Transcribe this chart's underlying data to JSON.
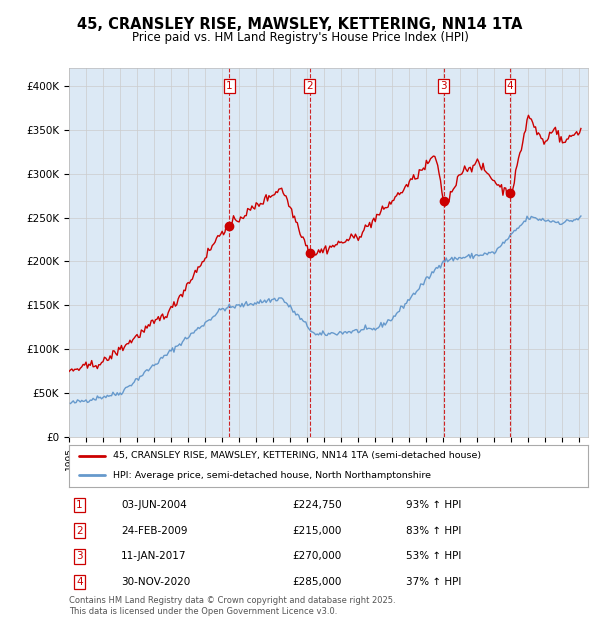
{
  "title": "45, CRANSLEY RISE, MAWSLEY, KETTERING, NN14 1TA",
  "subtitle": "Price paid vs. HM Land Registry's House Price Index (HPI)",
  "legend_line1": "45, CRANSLEY RISE, MAWSLEY, KETTERING, NN14 1TA (semi-detached house)",
  "legend_line2": "HPI: Average price, semi-detached house, North Northamptonshire",
  "footer": "Contains HM Land Registry data © Crown copyright and database right 2025.\nThis data is licensed under the Open Government Licence v3.0.",
  "bg_color": "#dce9f5",
  "transactions": [
    {
      "num": 1,
      "date": "03-JUN-2004",
      "price": 224750,
      "hpi_pct": "93%",
      "x_year": 2004.42
    },
    {
      "num": 2,
      "date": "24-FEB-2009",
      "price": 215000,
      "hpi_pct": "83%",
      "x_year": 2009.15
    },
    {
      "num": 3,
      "date": "11-JAN-2017",
      "price": 270000,
      "hpi_pct": "53%",
      "x_year": 2017.03
    },
    {
      "num": 4,
      "date": "30-NOV-2020",
      "price": 285000,
      "hpi_pct": "37%",
      "x_year": 2020.92
    }
  ],
  "red_color": "#cc0000",
  "blue_color": "#6699cc",
  "vline_color": "#cc0000",
  "ylim": [
    0,
    420000
  ],
  "yticks": [
    0,
    50000,
    100000,
    150000,
    200000,
    250000,
    300000,
    350000,
    400000
  ],
  "xlim_start": 1995.0,
  "xlim_end": 2025.5
}
